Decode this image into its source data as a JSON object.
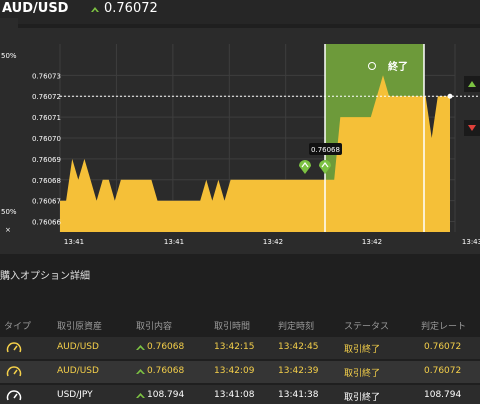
{
  "header": {
    "pair": "AUD/USD",
    "rate": "0.76072",
    "trend_icon": "up-arrow-icon",
    "trend_color": "#7cc242"
  },
  "chart_data": {
    "type": "area",
    "ylim": [
      0.760655,
      0.760745
    ],
    "y_ticks": [
      "0.76073",
      "0.76072",
      "0.76071",
      "0.76070",
      "0.76069",
      "0.76068",
      "0.76067",
      "0.76066"
    ],
    "x_tick_labels": [
      "13:41",
      "13:41",
      "13:42",
      "13:42",
      "13:43"
    ],
    "series": [
      {
        "values": [
          0.76067,
          0.76067,
          0.76069,
          0.76068,
          0.76069,
          0.76068,
          0.76067,
          0.76068,
          0.76068,
          0.76067,
          0.76068,
          0.76068,
          0.76068,
          0.76068,
          0.76068,
          0.76068,
          0.76067,
          0.76067,
          0.76067,
          0.76067,
          0.76067,
          0.76067,
          0.76067,
          0.76067,
          0.76068,
          0.76067,
          0.76068,
          0.76067,
          0.76068,
          0.76068,
          0.76068,
          0.76068,
          0.76068,
          0.76068,
          0.76068,
          0.76068,
          0.76068,
          0.76068,
          0.76068,
          0.76068,
          0.76068,
          0.76068,
          0.76068,
          0.76068,
          0.76068,
          0.76068,
          0.76071,
          0.76071,
          0.76071,
          0.76071,
          0.76071,
          0.76071,
          0.76072,
          0.76073,
          0.76072,
          0.76072,
          0.76072,
          0.76072,
          0.76072,
          0.76072,
          0.76072,
          0.7607,
          0.76072,
          0.76072,
          0.76072
        ]
      }
    ],
    "current_rate_line": 0.76072,
    "entry_marker_label": "0.76068",
    "end_zone_label": "終了",
    "left_pct_top": "50%",
    "left_pct_bottom": "50%",
    "left_close": "×",
    "area_color": "#f5c038",
    "zone_color": "#6d9a3a"
  },
  "section": {
    "title": "購入オプション詳細"
  },
  "table": {
    "headers": [
      "タイプ",
      "取引原資産",
      "取引内容",
      "取引時間",
      "判定時刻",
      "ステータス",
      "判定レート"
    ],
    "rows": [
      {
        "asset": "AUD/USD",
        "content": "0.76068",
        "time": "13:42:15",
        "judge": "13:42:45",
        "status": "取引終了",
        "rate": "0.76072"
      },
      {
        "asset": "AUD/USD",
        "content": "0.76068",
        "time": "13:42:09",
        "judge": "13:42:39",
        "status": "取引終了",
        "rate": "0.76072"
      },
      {
        "asset": "USD/JPY",
        "content": "108.794",
        "time": "13:41:08",
        "judge": "13:41:38",
        "status": "取引終了",
        "rate": "108.794"
      }
    ]
  }
}
